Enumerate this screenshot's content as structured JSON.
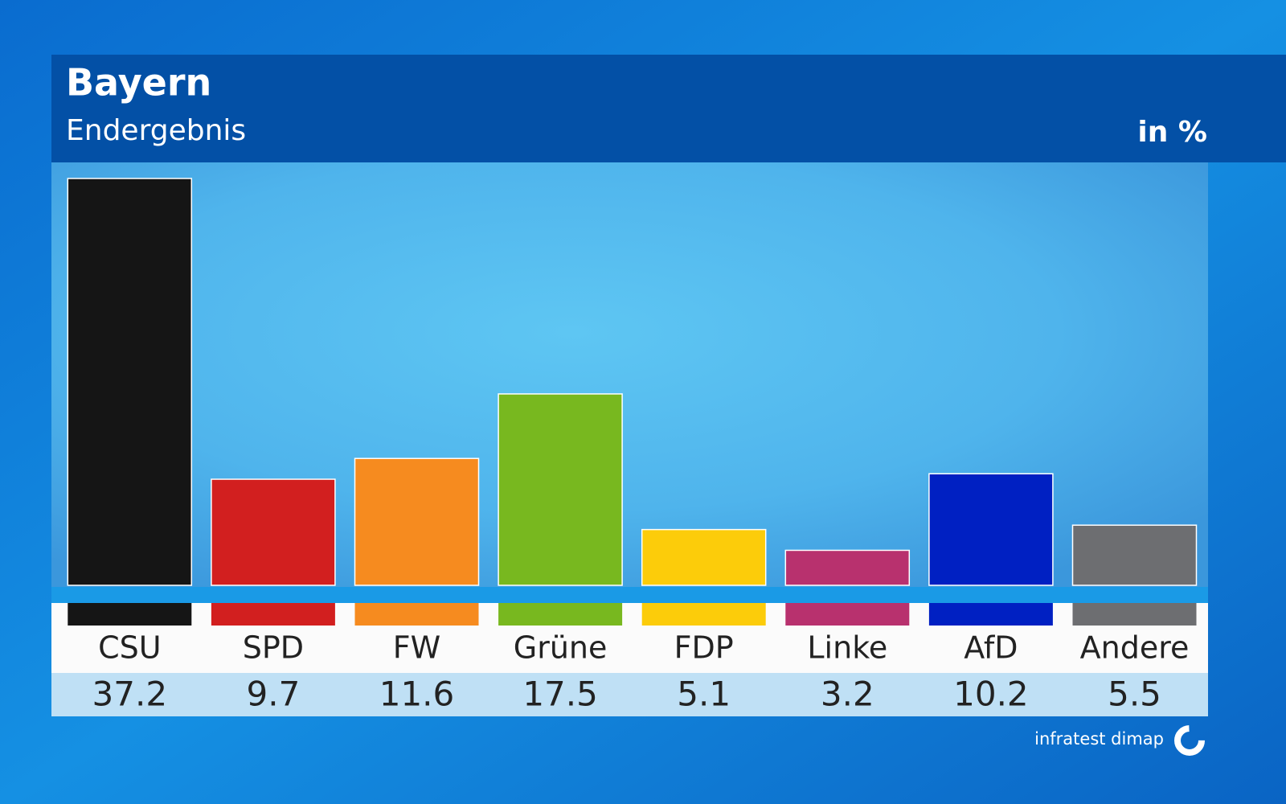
{
  "chart_data": {
    "type": "bar",
    "title": "Bayern",
    "subtitle": "Endergebnis",
    "unit_label": "in %",
    "source": "infratest dimap",
    "categories": [
      "CSU",
      "SPD",
      "FW",
      "Grüne",
      "FDP",
      "Linke",
      "AfD",
      "Andere"
    ],
    "values": [
      37.2,
      9.7,
      11.6,
      17.5,
      5.1,
      3.2,
      10.2,
      5.5
    ],
    "colors": [
      "#151515",
      "#d21f1f",
      "#f68b1f",
      "#78b81f",
      "#fccc0a",
      "#b8316e",
      "#0020c2",
      "#6d6e71"
    ]
  }
}
